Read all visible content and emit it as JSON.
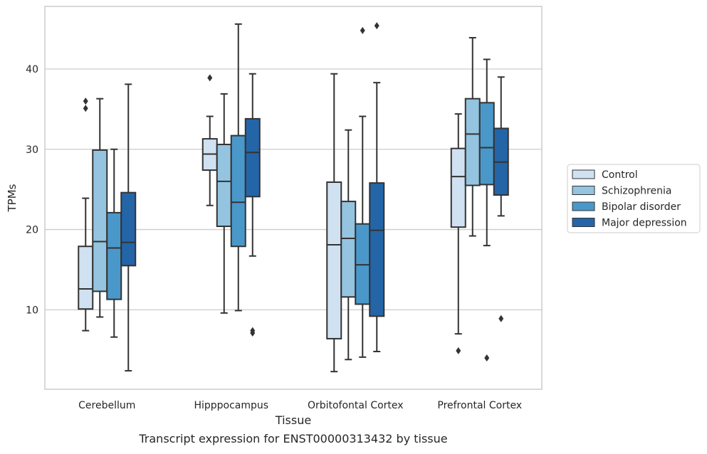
{
  "chart_data": {
    "type": "boxplot",
    "title": "",
    "caption": "Transcript expression for ENST00000313432 by tissue",
    "xlabel": "Tissue",
    "ylabel": "TPMs",
    "ylim": [
      0.1,
      47.8
    ],
    "yticks": [
      10,
      20,
      30,
      40
    ],
    "grid": "horizontal",
    "legend_position": "right",
    "categories": [
      "Cerebellum",
      "Hipppocampus",
      "Orbitofontal Cortex",
      "Prefrontal Cortex"
    ],
    "series": [
      {
        "name": "Control",
        "color": "#d0e1f2",
        "boxes": [
          {
            "whisker_low": 7.4,
            "q1": 10.1,
            "median": 12.6,
            "q3": 17.9,
            "whisker_high": 23.9,
            "outliers": [
              35.1,
              36.0
            ]
          },
          {
            "whisker_low": 23.0,
            "q1": 27.4,
            "median": 29.4,
            "q3": 31.3,
            "whisker_high": 34.1,
            "outliers": [
              38.9
            ]
          },
          {
            "whisker_low": 2.3,
            "q1": 6.4,
            "median": 18.1,
            "q3": 25.9,
            "whisker_high": 39.4,
            "outliers": []
          },
          {
            "whisker_low": 7.0,
            "q1": 20.3,
            "median": 26.6,
            "q3": 30.1,
            "whisker_high": 34.4,
            "outliers": [
              4.9
            ]
          }
        ]
      },
      {
        "name": "Schizophrenia",
        "color": "#94c4df",
        "boxes": [
          {
            "whisker_low": 9.1,
            "q1": 12.3,
            "median": 18.5,
            "q3": 29.9,
            "whisker_high": 36.3,
            "outliers": []
          },
          {
            "whisker_low": 9.6,
            "q1": 20.4,
            "median": 26.0,
            "q3": 30.6,
            "whisker_high": 36.9,
            "outliers": []
          },
          {
            "whisker_low": 3.8,
            "q1": 11.6,
            "median": 18.9,
            "q3": 23.5,
            "whisker_high": 32.4,
            "outliers": []
          },
          {
            "whisker_low": 19.2,
            "q1": 25.5,
            "median": 31.9,
            "q3": 36.3,
            "whisker_high": 43.9,
            "outliers": []
          }
        ]
      },
      {
        "name": "Bipolar disorder",
        "color": "#4a98c9",
        "boxes": [
          {
            "whisker_low": 6.6,
            "q1": 11.3,
            "median": 17.7,
            "q3": 22.1,
            "whisker_high": 30.0,
            "outliers": []
          },
          {
            "whisker_low": 9.9,
            "q1": 17.9,
            "median": 23.4,
            "q3": 31.7,
            "whisker_high": 45.6,
            "outliers": []
          },
          {
            "whisker_low": 4.1,
            "q1": 10.7,
            "median": 15.6,
            "q3": 20.7,
            "whisker_high": 34.1,
            "outliers": [
              44.8
            ]
          },
          {
            "whisker_low": 18.0,
            "q1": 25.6,
            "median": 30.2,
            "q3": 35.8,
            "whisker_high": 41.2,
            "outliers": [
              4.0
            ]
          }
        ]
      },
      {
        "name": "Major depression",
        "color": "#2465a8",
        "boxes": [
          {
            "whisker_low": 2.4,
            "q1": 15.5,
            "median": 18.4,
            "q3": 24.6,
            "whisker_high": 38.1,
            "outliers": []
          },
          {
            "whisker_low": 16.7,
            "q1": 24.1,
            "median": 29.6,
            "q3": 33.8,
            "whisker_high": 39.4,
            "outliers": [
              7.1,
              7.4
            ]
          },
          {
            "whisker_low": 4.8,
            "q1": 9.2,
            "median": 19.9,
            "q3": 25.8,
            "whisker_high": 38.3,
            "outliers": [
              45.4
            ]
          },
          {
            "whisker_low": 21.7,
            "q1": 24.3,
            "median": 28.4,
            "q3": 32.6,
            "whisker_high": 39.0,
            "outliers": [
              8.9
            ]
          }
        ]
      }
    ]
  }
}
